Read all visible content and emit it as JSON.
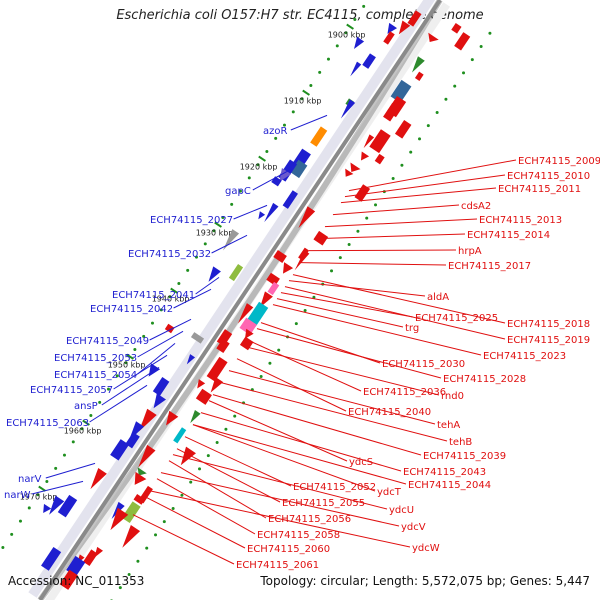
{
  "title": "Escherichia coli O157:H7 str. EC4115, complete genome",
  "footer": {
    "accession": "Accession: NC_011353",
    "summary": "Topology: circular; Length: 5,572,075 bp; Genes: 5,447"
  },
  "colors": {
    "left_label": "#1f1fd0",
    "right_label": "#e01010",
    "backbone": "#8a8a8a",
    "tick": "#1f8f1f"
  },
  "kbp_ticks": [
    "1900 kbp",
    "1910 kbp",
    "1920 kbp",
    "1930 kbp",
    "1940 kbp",
    "1950 kbp",
    "1960 kbp",
    "1970 kbp"
  ],
  "left_labels": [
    "azoR",
    "gapC",
    "ECH74115_2027",
    "ECH74115_2032",
    "ECH74115_2041",
    "ECH74115_2042",
    "ECH74115_2049",
    "ECH74115_2053",
    "ECH74115_2054",
    "ECH74115_2057",
    "ansP",
    "ECH74115_2063",
    "narV",
    "narW"
  ],
  "right_labels": [
    "ECH74115_2009",
    "ECH74115_2010",
    "ECH74115_2011",
    "cdsA2",
    "ECH74115_2013",
    "ECH74115_2014",
    "hrpA",
    "ECH74115_2017",
    "aldA",
    "ECH74115_2025",
    "ECH74115_2018",
    "trg",
    "ECH74115_2019",
    "ECH74115_2023",
    "ECH74115_2030",
    "ECH74115_2028",
    "ECH74115_2036",
    "rnd0",
    "ECH74115_2040",
    "tehA",
    "tehB",
    "ECH74115_2039",
    "ydcS",
    "ECH74115_2043",
    "ECH74115_2044",
    "ydcT",
    "ECH74115_2052",
    "ECH74115_2055",
    "ydcU",
    "ECH74115_2056",
    "ydcV",
    "ECH74115_2058",
    "ydcW",
    "ECH74115_2060",
    "ECH74115_2061"
  ]
}
